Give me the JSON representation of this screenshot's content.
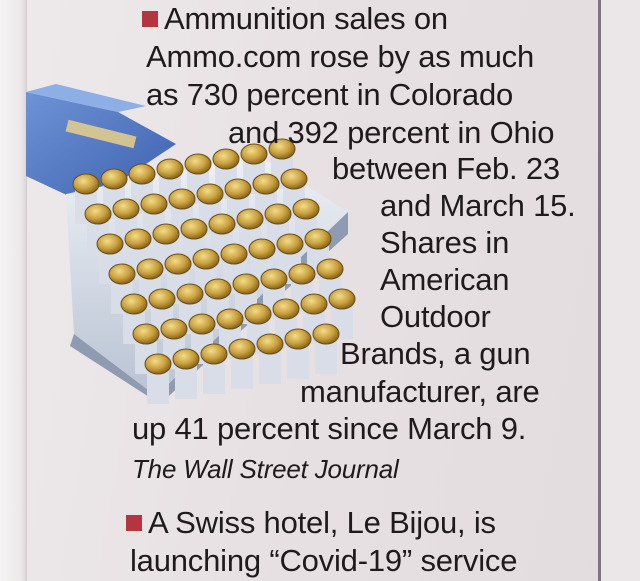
{
  "items": [
    {
      "lines": [
        "Ammunition sales on",
        "Ammo.com rose by as much",
        "as 730 percent in Colorado",
        "and 392 percent in Ohio",
        "between Feb. 23",
        "and March 15.",
        "Shares in",
        "American",
        "Outdoor",
        "Brands, a gun",
        "manufacturer, are",
        "up 41 percent since March 9."
      ],
      "source": "The Wall Street Journal"
    },
    {
      "lines": [
        "A Swiss hotel, Le Bijou, is",
        "launching “Covid-19” service"
      ]
    }
  ],
  "colors": {
    "bullet": "#b23540",
    "text": "#1f1b1d",
    "paper": "#e9e4e6",
    "box_blue": "#4f76c2",
    "cartridge_brass": "#c59a3a"
  },
  "image": {
    "icon": "ammunition-box-icon"
  }
}
